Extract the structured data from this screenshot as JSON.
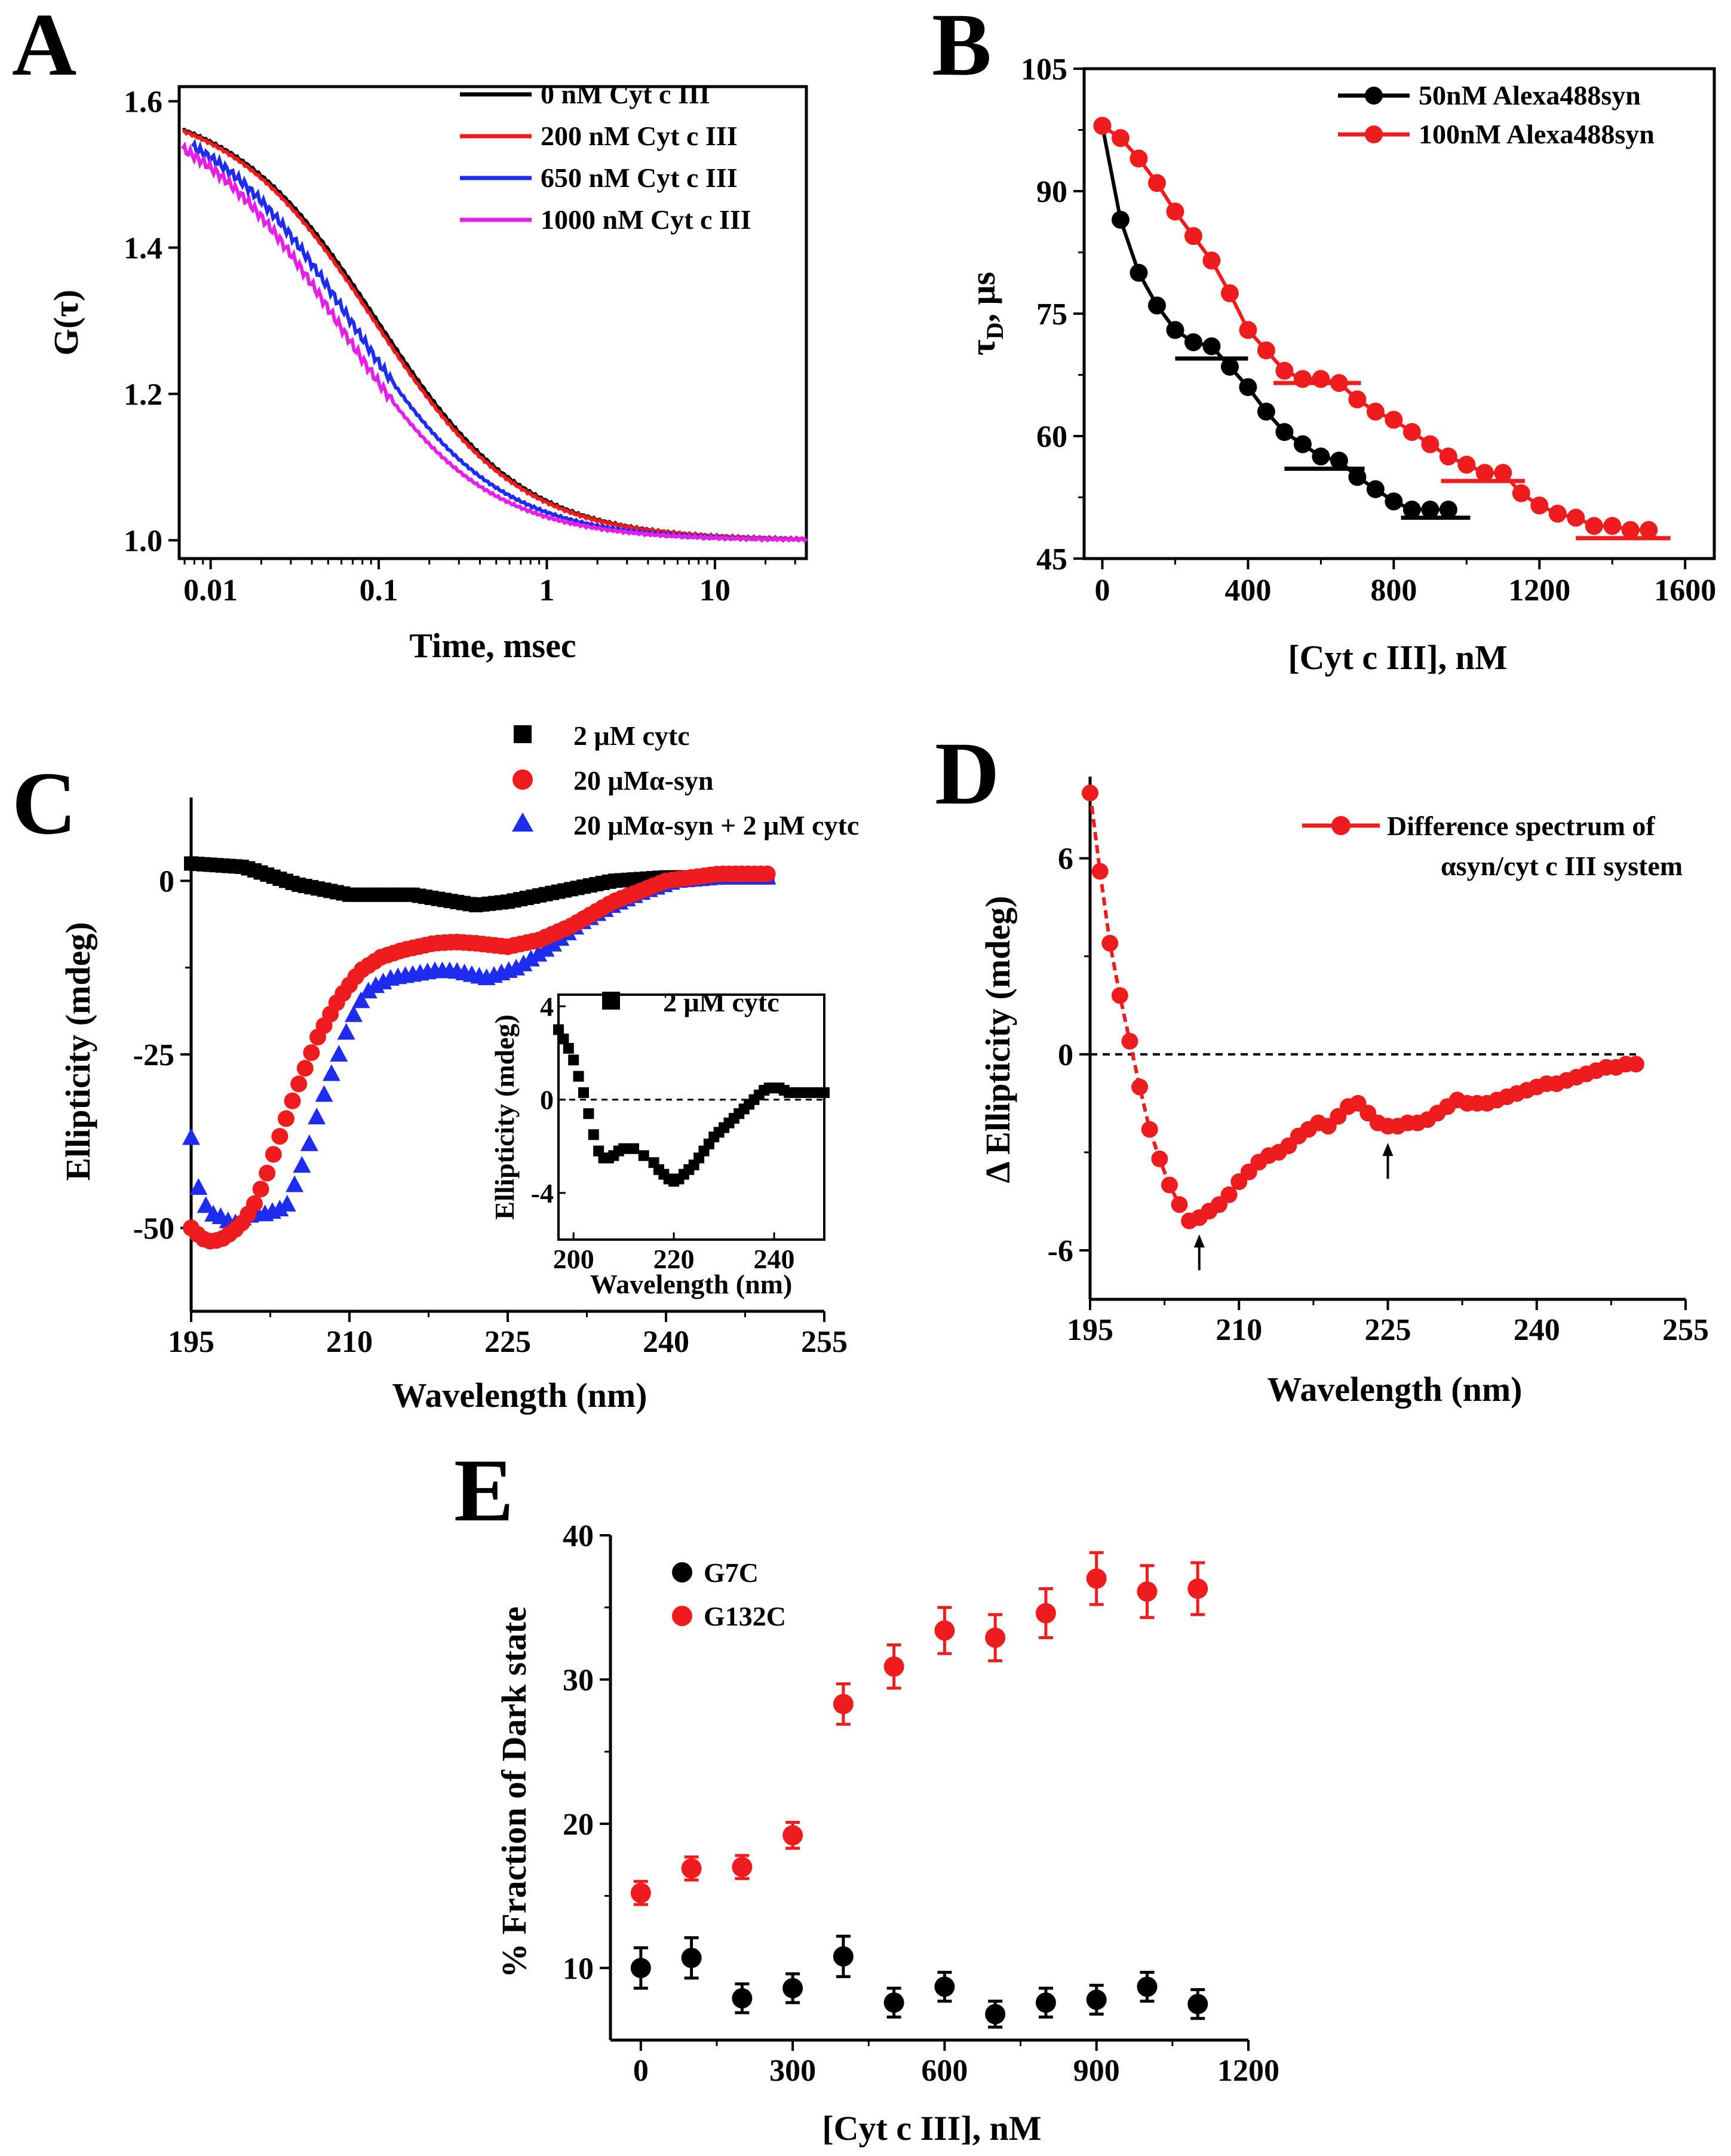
{
  "colors": {
    "black": "#000000",
    "red": "#ee1c1c",
    "blue": "#1e2cf0",
    "magenta": "#e61ee6"
  },
  "chart_data": [
    {
      "id": "A",
      "panel": "A",
      "type": "line",
      "title": "",
      "xlabel": "Time, msec",
      "ylabel": "G(τ)",
      "xscale": "log",
      "xlim": [
        0.0065,
        35
      ],
      "ylim": [
        0.975,
        1.62
      ],
      "xticks": [
        0.01,
        0.1,
        1,
        10
      ],
      "xtick_labels": [
        "0.01",
        "0.1",
        "1",
        "10"
      ],
      "yticks": [
        1.0,
        1.2,
        1.4,
        1.6
      ],
      "ytick_labels": [
        "1.0",
        "1.2",
        "1.4",
        "1.6"
      ],
      "legend_position": "top-right",
      "series": [
        {
          "name": "0 nM Cyt c III",
          "color": "#000000",
          "tauD_ms": 0.098,
          "y0": 1.6,
          "start": 0.0068
        },
        {
          "name": "200 nM Cyt c III",
          "color": "#ee1c1c",
          "tauD_ms": 0.094,
          "y0": 1.6,
          "start": 0.0068
        },
        {
          "name": "650 nM Cyt c III",
          "color": "#1e2cf0",
          "tauD_ms": 0.068,
          "y0": 1.6,
          "start": 0.0078
        },
        {
          "name": "1000 nM Cyt c III",
          "color": "#e61ee6",
          "tauD_ms": 0.056,
          "y0": 1.6,
          "start": 0.0068
        }
      ]
    },
    {
      "id": "B",
      "panel": "B",
      "type": "scatter",
      "title": "",
      "xlabel": "[Cyt c III], nM",
      "ylabel": "τD, μs",
      "xlim": [
        -50,
        1680
      ],
      "ylim": [
        45,
        105
      ],
      "xticks": [
        0,
        400,
        800,
        1200,
        1600
      ],
      "xtick_labels": [
        "0",
        "400",
        "800",
        "1200",
        "1600"
      ],
      "yticks": [
        45,
        60,
        75,
        90,
        105
      ],
      "ytick_labels": [
        "45",
        "60",
        "75",
        "90",
        "105"
      ],
      "legend_position": "top-right",
      "series": [
        {
          "name": "50nM Alexa488syn",
          "color": "#000000",
          "x": [
            0,
            50,
            100,
            150,
            200,
            250,
            300,
            350,
            400,
            450,
            500,
            550,
            600,
            650,
            700,
            750,
            800,
            850,
            900,
            950
          ],
          "y": [
            98,
            86.5,
            80,
            76,
            73,
            71.5,
            71,
            68.5,
            66,
            63,
            60.5,
            59,
            57.5,
            57,
            55,
            53.5,
            52,
            51,
            51,
            51
          ],
          "plateaus": [
            {
              "x": [
                200,
                400
              ],
              "y": 69.5
            },
            {
              "x": [
                500,
                720
              ],
              "y": 56
            },
            {
              "x": [
                820,
                1010
              ],
              "y": 50
            }
          ]
        },
        {
          "name": "100nM Alexa488syn",
          "color": "#ee1c1c",
          "x": [
            0,
            50,
            100,
            150,
            200,
            250,
            300,
            350,
            400,
            450,
            500,
            550,
            600,
            650,
            700,
            750,
            800,
            850,
            900,
            950,
            1000,
            1050,
            1100,
            1150,
            1200,
            1250,
            1300,
            1350,
            1400,
            1450,
            1500
          ],
          "y": [
            98,
            96.5,
            94,
            91,
            87.5,
            84.5,
            81.5,
            77.5,
            73,
            70.5,
            68,
            67,
            67,
            66.5,
            64.5,
            63,
            62,
            60.5,
            59,
            57.5,
            56.5,
            55.5,
            55.5,
            53,
            51.5,
            50.5,
            50,
            49,
            49,
            48.5,
            48.5
          ],
          "plateaus": [
            {
              "x": [
                470,
                710
              ],
              "y": 66.5
            },
            {
              "x": [
                930,
                1160
              ],
              "y": 54.5
            },
            {
              "x": [
                1300,
                1560
              ],
              "y": 47.5
            }
          ]
        }
      ]
    },
    {
      "id": "C",
      "panel": "C",
      "type": "scatter",
      "title": "",
      "xlabel": "Wavelength (nm)",
      "ylabel": "Ellipticity (mdeg)",
      "xlim": [
        195,
        255
      ],
      "ylim": [
        -62,
        12
      ],
      "xticks": [
        195,
        210,
        225,
        240,
        255
      ],
      "xtick_labels": [
        "195",
        "210",
        "225",
        "240",
        "255"
      ],
      "yticks": [
        0,
        -25,
        -50
      ],
      "ytick_labels": [
        "0",
        "-25",
        "-50"
      ],
      "legend_position": "top",
      "series": [
        {
          "name": "2 μM cytc",
          "marker": "square",
          "color": "#000000",
          "x": [
            195,
            200,
            205,
            210,
            213,
            216,
            220,
            222,
            225,
            230,
            235,
            240,
            245,
            250
          ],
          "y": [
            2.5,
            2,
            -0.5,
            -2,
            -2,
            -2,
            -3,
            -3.5,
            -3,
            -1.5,
            0,
            0.5,
            0.5,
            0.5
          ]
        },
        {
          "name": "20 μMα-syn",
          "marker": "circle",
          "color": "#ee1c1c",
          "x": [
            195,
            196,
            197,
            198,
            199,
            200,
            201,
            202,
            203,
            205,
            207,
            209,
            211,
            213,
            215,
            218,
            220,
            222,
            225,
            228,
            231,
            235,
            240,
            245,
            250
          ],
          "y": [
            -50,
            -51.5,
            -52,
            -51.5,
            -50.5,
            -49,
            -46.5,
            -43,
            -38.5,
            -30,
            -22.5,
            -17,
            -13,
            -11,
            -10,
            -9,
            -8.8,
            -9,
            -9.5,
            -8.5,
            -6.5,
            -3,
            0,
            1,
            1
          ]
        },
        {
          "name": "20 μMα-syn + 2 μM cytc",
          "marker": "triangle",
          "color": "#1e2cf0",
          "x": [
            195,
            195.5,
            196,
            197,
            198,
            199,
            200,
            201,
            202,
            203,
            204,
            205,
            206,
            207,
            208,
            209,
            210,
            211,
            212,
            214,
            216,
            218,
            220,
            223,
            226,
            229,
            232,
            235,
            238,
            241,
            245,
            250
          ],
          "y": [
            -37,
            -43,
            -46,
            -48,
            -48.5,
            -49.5,
            -48.5,
            -48,
            -48,
            -47.5,
            -47,
            -43,
            -39,
            -33.5,
            -29,
            -25,
            -20.5,
            -17.5,
            -15.5,
            -14,
            -13.5,
            -13,
            -13,
            -14,
            -12.5,
            -9.5,
            -6,
            -3.5,
            -1.5,
            0,
            0.5,
            0.5
          ]
        }
      ],
      "inset": {
        "type": "scatter",
        "legend_label": "2 μM cytc",
        "xlabel": "Wavelength (nm)",
        "ylabel": "Ellipticity (mdeg)",
        "xlim": [
          197,
          250
        ],
        "ylim": [
          -6,
          4.5
        ],
        "xticks": [
          200,
          220,
          240
        ],
        "xtick_labels": [
          "200",
          "220",
          "240"
        ],
        "yticks": [
          4,
          0,
          -4
        ],
        "ytick_labels": [
          "4",
          "0",
          "-4"
        ],
        "reference_line_y": 0,
        "x": [
          197,
          198,
          199,
          200,
          201,
          202,
          203,
          204,
          205,
          206,
          207,
          208,
          209,
          210,
          212,
          214,
          216,
          217,
          218,
          219,
          220,
          221,
          222,
          223,
          224,
          225,
          226,
          227,
          228,
          229,
          230,
          231,
          232,
          233,
          234,
          235,
          236,
          237,
          238,
          239,
          240,
          241,
          242,
          243,
          244,
          246,
          248,
          250
        ],
        "y": [
          3,
          2.6,
          2.2,
          1.7,
          1,
          0.3,
          -0.6,
          -1.5,
          -2.2,
          -2.5,
          -2.5,
          -2.4,
          -2.2,
          -2.1,
          -2.1,
          -2.4,
          -2.7,
          -3,
          -3.2,
          -3.4,
          -3.5,
          -3.4,
          -3.2,
          -3,
          -2.8,
          -2.5,
          -2.2,
          -1.9,
          -1.6,
          -1.4,
          -1.2,
          -1,
          -0.8,
          -0.6,
          -0.4,
          -0.2,
          0,
          0.2,
          0.4,
          0.5,
          0.5,
          0.5,
          0.4,
          0.3,
          0.3,
          0.3,
          0.3,
          0.3
        ]
      }
    },
    {
      "id": "D",
      "panel": "D",
      "type": "line",
      "title": "",
      "xlabel": "Wavelength (nm)",
      "ylabel": "Δ Ellipticity (mdeg)",
      "xlim": [
        195,
        255
      ],
      "ylim": [
        -7.5,
        8.5
      ],
      "xticks": [
        195,
        210,
        225,
        240,
        255
      ],
      "xtick_labels": [
        "195",
        "210",
        "225",
        "240",
        "255"
      ],
      "yticks": [
        6,
        0,
        -6
      ],
      "ytick_labels": [
        "6",
        "0",
        "-6"
      ],
      "legend_position": "top-right",
      "legend_lines": [
        "Difference spectrum of",
        "αsyn/cyt c III system"
      ],
      "reference_line_y": 0,
      "annotations": [
        {
          "type": "arrow",
          "x": 206
        },
        {
          "type": "arrow",
          "x": 225
        }
      ],
      "series": [
        {
          "name": "Difference spectrum of αsyn/cyt c III system",
          "color": "#ee1c1c",
          "x": [
            195,
            196,
            197,
            198,
            199,
            200,
            201,
            202,
            203,
            204,
            205,
            206,
            207,
            208,
            209,
            210,
            211,
            212,
            213,
            214,
            215,
            216,
            217,
            218,
            219,
            220,
            221,
            222,
            223,
            224,
            225,
            226,
            227,
            228,
            229,
            230,
            231,
            232,
            233,
            234,
            235,
            236,
            237,
            238,
            239,
            240,
            241,
            242,
            243,
            244,
            245,
            246,
            247,
            248,
            249,
            250
          ],
          "y": [
            8,
            5.6,
            3.4,
            1.8,
            0.4,
            -1,
            -2.3,
            -3.2,
            -4,
            -4.6,
            -5.1,
            -5,
            -4.8,
            -4.6,
            -4.3,
            -3.9,
            -3.6,
            -3.3,
            -3.1,
            -3,
            -2.8,
            -2.5,
            -2.3,
            -2.1,
            -2.2,
            -1.9,
            -1.6,
            -1.5,
            -1.8,
            -2.1,
            -2.2,
            -2.2,
            -2.1,
            -2.1,
            -2,
            -1.8,
            -1.6,
            -1.4,
            -1.5,
            -1.5,
            -1.5,
            -1.4,
            -1.3,
            -1.2,
            -1.1,
            -1,
            -0.9,
            -0.9,
            -0.8,
            -0.7,
            -0.6,
            -0.5,
            -0.4,
            -0.4,
            -0.3,
            -0.3
          ]
        }
      ]
    },
    {
      "id": "E",
      "panel": "E",
      "type": "scatter",
      "title": "",
      "xlabel": "[Cyt c III], nM",
      "ylabel": "% Fraction of Dark state",
      "xlim": [
        -60,
        1200
      ],
      "ylim": [
        5,
        40
      ],
      "xticks": [
        0,
        300,
        600,
        900,
        1200
      ],
      "xtick_labels": [
        "0",
        "300",
        "600",
        "900",
        "1200"
      ],
      "yticks": [
        10,
        20,
        30,
        40
      ],
      "ytick_labels": [
        "10",
        "20",
        "30",
        "40"
      ],
      "legend_position": "top-left",
      "series": [
        {
          "name": "G7C",
          "color": "#000000",
          "x": [
            0,
            100,
            200,
            300,
            400,
            500,
            600,
            700,
            800,
            900,
            1000,
            1100
          ],
          "y": [
            10,
            10.7,
            7.9,
            8.6,
            10.8,
            7.6,
            8.7,
            6.8,
            7.6,
            7.8,
            8.7,
            7.5
          ],
          "error": [
            1.4,
            1.4,
            1.0,
            1.0,
            1.4,
            1.0,
            1.0,
            0.9,
            1.0,
            1.0,
            1.0,
            1.0
          ]
        },
        {
          "name": "G132C",
          "color": "#ee1c1c",
          "x": [
            0,
            100,
            200,
            300,
            400,
            500,
            600,
            700,
            800,
            900,
            1000,
            1100
          ],
          "y": [
            15.2,
            16.9,
            17,
            19.2,
            28.3,
            30.9,
            33.4,
            32.9,
            34.6,
            37,
            36.1,
            36.3
          ],
          "error": [
            0.8,
            0.8,
            0.8,
            0.9,
            1.4,
            1.5,
            1.6,
            1.6,
            1.7,
            1.8,
            1.8,
            1.8
          ]
        }
      ]
    }
  ],
  "panels": {
    "A": {
      "letter": "A"
    },
    "B": {
      "letter": "B"
    },
    "C": {
      "letter": "C"
    },
    "D": {
      "letter": "D"
    },
    "E": {
      "letter": "E"
    }
  }
}
